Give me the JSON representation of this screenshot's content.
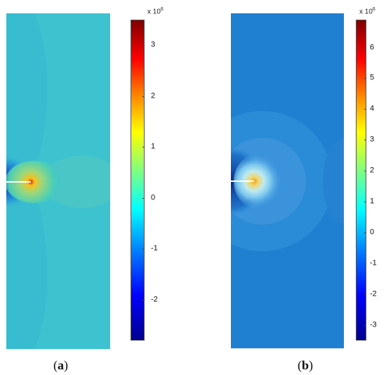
{
  "panels": [
    {
      "id": "a",
      "caption_open": "(",
      "caption_letter": "a",
      "caption_close": ")",
      "colorbar_multiplier_base": "x 10",
      "colorbar_multiplier_exp": "6",
      "colorbar_ticks": [
        "3",
        "2",
        "1",
        "0",
        "-1",
        "-2"
      ],
      "colorbar_range": [
        -2.8,
        3.5
      ]
    },
    {
      "id": "b",
      "caption_open": "(",
      "caption_letter": "b",
      "caption_close": ")",
      "colorbar_multiplier_base": "x 10",
      "colorbar_multiplier_exp": "6",
      "colorbar_ticks": [
        "6",
        "5",
        "4",
        "3",
        "2",
        "1",
        "0",
        "-1",
        "-2",
        "-3"
      ],
      "colorbar_range": [
        -3.5,
        6.9
      ]
    }
  ],
  "colors": {
    "colormap": "jet",
    "panel_a_background": "#3dc3cf",
    "panel_b_background": "#1f7fd0",
    "crack": "#ffffff"
  }
}
